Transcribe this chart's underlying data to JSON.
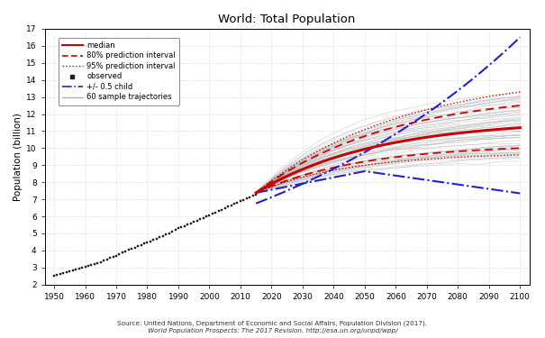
{
  "title": "World: Total Population",
  "ylabel": "Population (billion)",
  "xlim": [
    1947,
    2103
  ],
  "ylim": [
    2,
    17
  ],
  "yticks": [
    2,
    3,
    4,
    5,
    6,
    7,
    8,
    9,
    10,
    11,
    12,
    13,
    14,
    15,
    16,
    17
  ],
  "xticks": [
    1950,
    1960,
    1970,
    1980,
    1990,
    2000,
    2010,
    2020,
    2030,
    2040,
    2050,
    2060,
    2070,
    2080,
    2090,
    2100
  ],
  "source_line1": "Source: United Nations, Department of Economic and Social Affairs, Population Division (2017).",
  "source_line2": "World Population Prospects: The 2017 Revision. http://esa.un.org/unpd/wpp/",
  "background_color": "#ffffff",
  "grid_color": "#c8c8c8",
  "observed_color": "#222222",
  "median_color": "#cc0000",
  "pi80_color": "#cc0000",
  "pi95_color": "#cc0000",
  "blue_color": "#2222cc",
  "sample_color": "#b0b0b0",
  "legend_labels": [
    "median",
    "80% prediction interval",
    "95% prediction interval",
    "observed",
    "+/- 0.5 child",
    "60 sample trajectories"
  ],
  "obs_years": [
    1950,
    1951,
    1952,
    1953,
    1954,
    1955,
    1956,
    1957,
    1958,
    1959,
    1960,
    1961,
    1962,
    1963,
    1964,
    1965,
    1966,
    1967,
    1968,
    1969,
    1970,
    1971,
    1972,
    1973,
    1974,
    1975,
    1976,
    1977,
    1978,
    1979,
    1980,
    1981,
    1982,
    1983,
    1984,
    1985,
    1986,
    1987,
    1988,
    1989,
    1990,
    1991,
    1992,
    1993,
    1994,
    1995,
    1996,
    1997,
    1998,
    1999,
    2000,
    2001,
    2002,
    2003,
    2004,
    2005,
    2006,
    2007,
    2008,
    2009,
    2010,
    2011,
    2012,
    2013,
    2014,
    2015
  ],
  "obs_pop": [
    2.536,
    2.584,
    2.63,
    2.677,
    2.724,
    2.773,
    2.823,
    2.876,
    2.932,
    2.99,
    3.032,
    3.085,
    3.141,
    3.2,
    3.263,
    3.329,
    3.4,
    3.468,
    3.552,
    3.632,
    3.7,
    3.784,
    3.866,
    3.949,
    4.03,
    4.086,
    4.159,
    4.243,
    4.33,
    4.415,
    4.453,
    4.533,
    4.614,
    4.696,
    4.782,
    4.851,
    4.938,
    5.024,
    5.112,
    5.202,
    5.295,
    5.359,
    5.44,
    5.516,
    5.592,
    5.673,
    5.752,
    5.83,
    5.908,
    5.986,
    6.07,
    6.151,
    6.23,
    6.31,
    6.39,
    6.47,
    6.558,
    6.641,
    6.722,
    6.802,
    6.895,
    6.974,
    7.058,
    7.136,
    7.214,
    7.295
  ]
}
